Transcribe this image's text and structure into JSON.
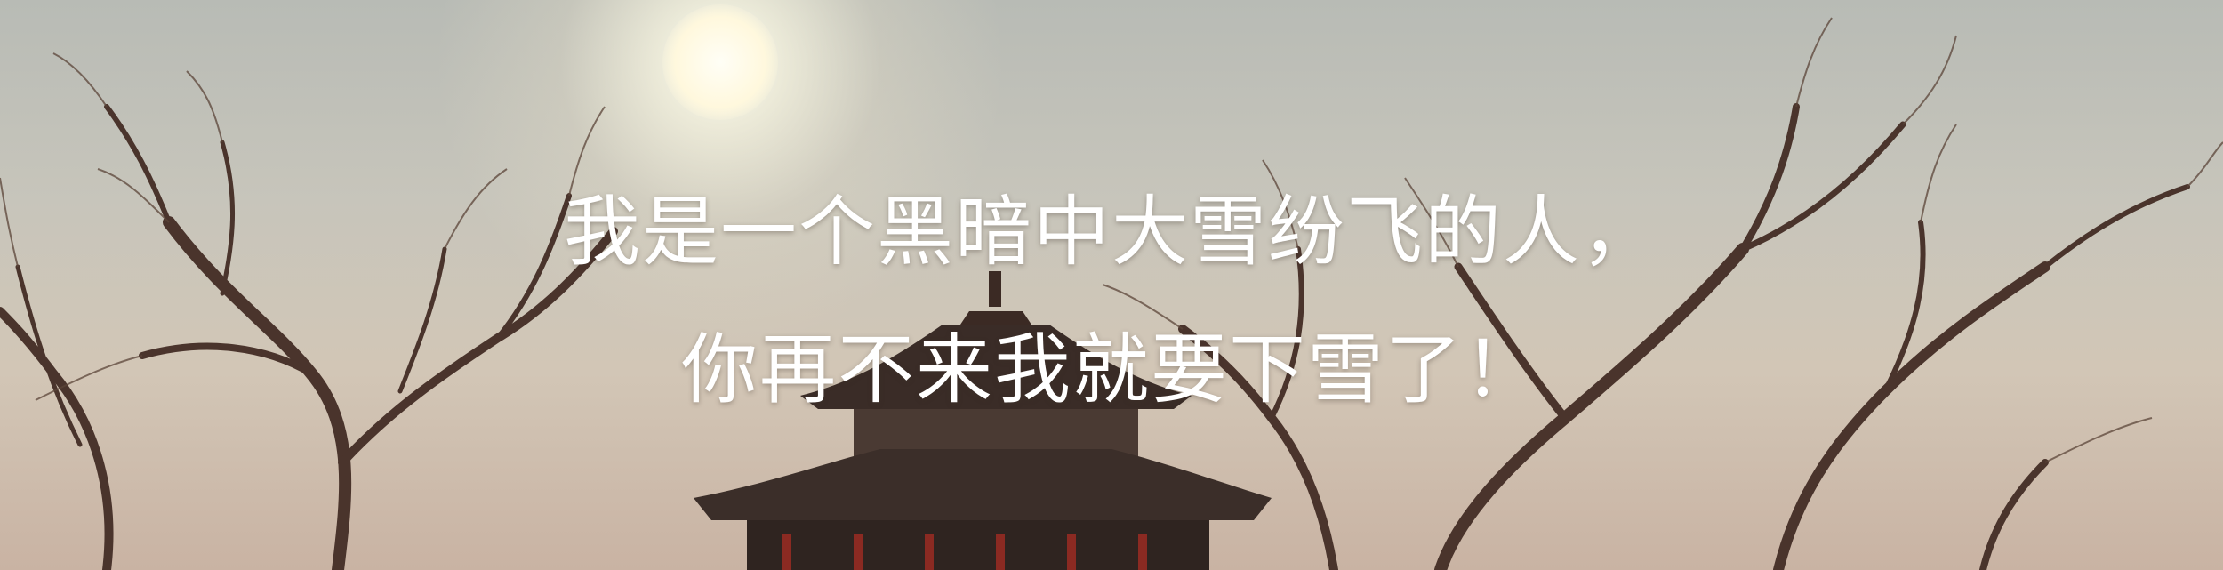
{
  "caption": {
    "line1": "我是一个黑暗中大雪纷飞的人，",
    "line2": "你再不来我就要下雪了！"
  },
  "colors": {
    "text": "#ffffff",
    "silhouette": "#3b2a24",
    "pavilion_pillar": "#8b2a22"
  }
}
